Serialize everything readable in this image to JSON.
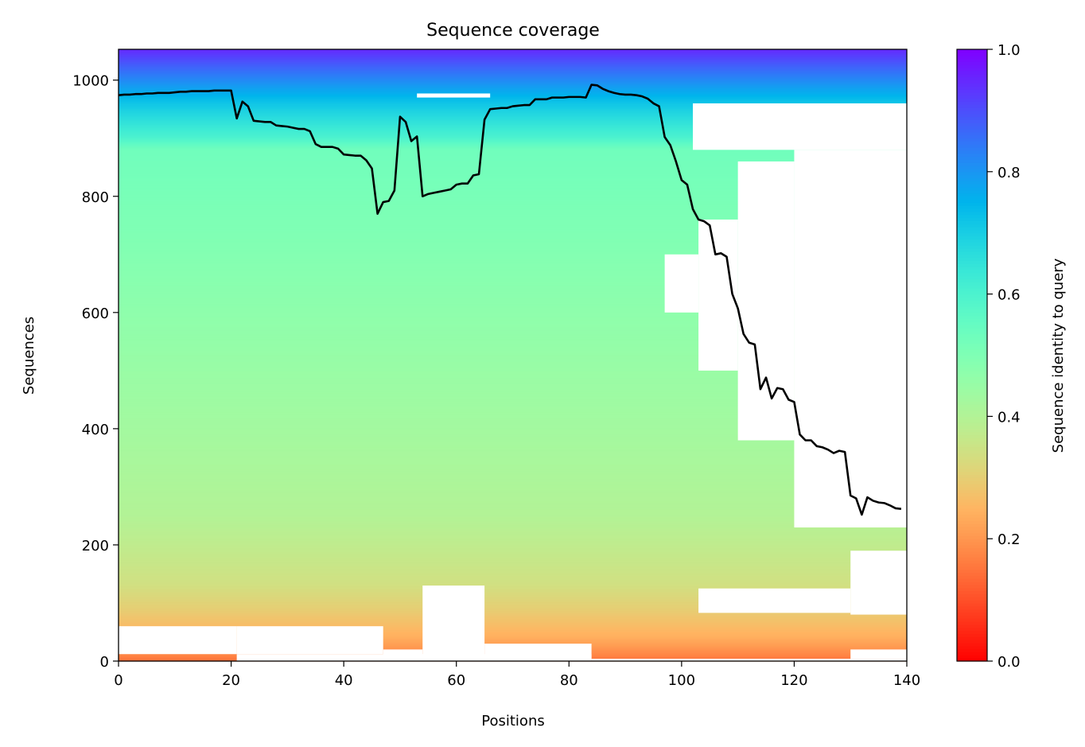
{
  "chart_data": {
    "type": "heatmap",
    "title": "Sequence coverage",
    "xlabel": "Positions",
    "ylabel": "Sequences",
    "xlim": [
      0,
      140
    ],
    "ylim": [
      0,
      1053
    ],
    "xticks": [
      0,
      20,
      40,
      60,
      80,
      100,
      120,
      140
    ],
    "yticks": [
      0,
      200,
      400,
      600,
      800,
      1000
    ],
    "grid": false,
    "colorbar": {
      "label": "Sequence identity to query",
      "colormap": "rainbow",
      "range": [
        0,
        1
      ],
      "ticks": [
        "0.0",
        "0.2",
        "0.4",
        "0.6",
        "0.8",
        "1.0"
      ]
    },
    "row_identity_stops": [
      [
        0,
        0.15
      ],
      [
        12,
        0.18
      ],
      [
        40,
        0.24
      ],
      [
        90,
        0.3
      ],
      [
        130,
        0.34
      ],
      [
        250,
        0.4
      ],
      [
        500,
        0.45
      ],
      [
        880,
        0.53
      ],
      [
        900,
        0.6
      ],
      [
        960,
        0.72
      ],
      [
        1000,
        0.82
      ],
      [
        1053,
        0.95
      ]
    ],
    "uncovered_blocks": [
      [
        21,
        84,
        0,
        12
      ],
      [
        0,
        21,
        12,
        60
      ],
      [
        21,
        47,
        12,
        60
      ],
      [
        47,
        54,
        0,
        20
      ],
      [
        54,
        65,
        0,
        130
      ],
      [
        65,
        84,
        0,
        30
      ],
      [
        84,
        140,
        0,
        4
      ],
      [
        130,
        140,
        4,
        20
      ],
      [
        103,
        130,
        83,
        125
      ],
      [
        130,
        140,
        80,
        190
      ],
      [
        102,
        140,
        880,
        960
      ],
      [
        120,
        140,
        230,
        880
      ],
      [
        110,
        120,
        380,
        860
      ],
      [
        103,
        110,
        500,
        760
      ],
      [
        97,
        103,
        600,
        700
      ],
      [
        53,
        66,
        970,
        977
      ]
    ],
    "coverage_line": {
      "color": "#000000",
      "values": [
        974,
        975,
        975,
        976,
        976,
        977,
        977,
        978,
        978,
        978,
        979,
        980,
        980,
        981,
        981,
        981,
        981,
        982,
        982,
        982,
        982,
        934,
        963,
        955,
        930,
        929,
        928,
        928,
        922,
        921,
        920,
        918,
        916,
        916,
        912,
        890,
        885,
        885,
        885,
        882,
        872,
        871,
        870,
        870,
        862,
        848,
        770,
        790,
        792,
        810,
        937,
        928,
        895,
        903,
        800,
        804,
        806,
        808,
        810,
        812,
        820,
        822,
        822,
        836,
        838,
        932,
        950,
        951,
        952,
        952,
        955,
        956,
        957,
        957,
        967,
        967,
        967,
        970,
        970,
        970,
        971,
        971,
        971,
        970,
        992,
        991,
        985,
        981,
        978,
        976,
        975,
        975,
        974,
        972,
        968,
        960,
        955,
        902,
        888,
        860,
        828,
        820,
        778,
        760,
        757,
        750,
        700,
        702,
        696,
        632,
        607,
        563,
        548,
        545,
        468,
        488,
        452,
        470,
        468,
        450,
        446,
        390,
        380,
        380,
        370,
        368,
        364,
        358,
        362,
        360,
        285,
        280,
        252,
        282,
        276,
        273,
        272,
        268,
        263,
        262
      ]
    }
  }
}
